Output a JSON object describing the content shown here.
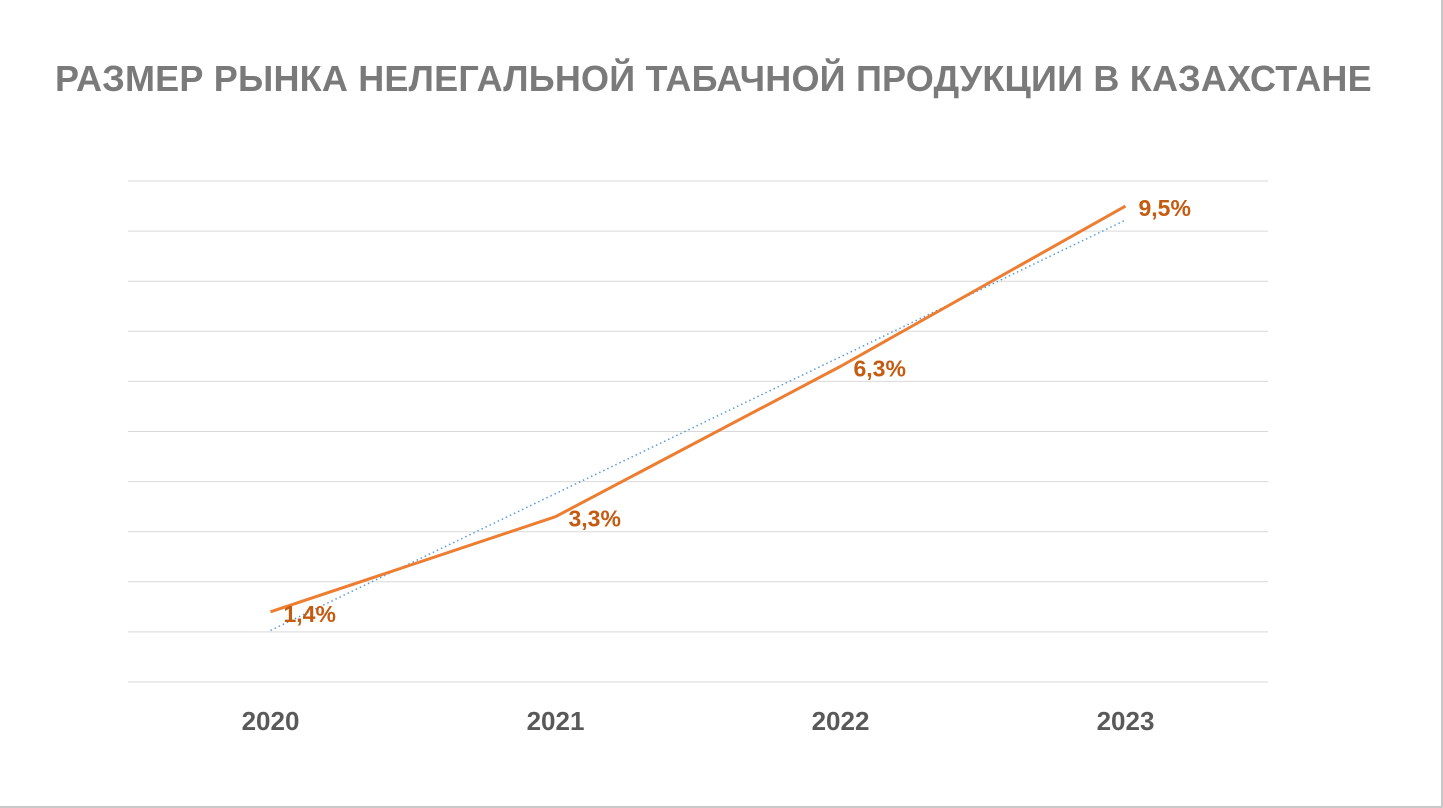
{
  "chart_data": {
    "type": "line",
    "title": "РАЗМЕР РЫНКА НЕЛЕГАЛЬНОЙ ТАБАЧНОЙ ПРОДУКЦИИ В КАЗАХСТАНЕ",
    "categories": [
      "2020",
      "2021",
      "2022",
      "2023"
    ],
    "series": [
      {
        "values": [
          1.4,
          3.3,
          6.3,
          9.5
        ],
        "labels": [
          "1,4%",
          "3,3%",
          "6,3%",
          "9,5%"
        ],
        "color": "#ed7d31"
      }
    ],
    "trendline": {
      "type": "linear",
      "style": "dotted",
      "color": "#5b9bd5"
    },
    "ylim": [
      0,
      10
    ],
    "y_gridline_step": 1,
    "grid": true,
    "label_color": "#c55a11"
  }
}
